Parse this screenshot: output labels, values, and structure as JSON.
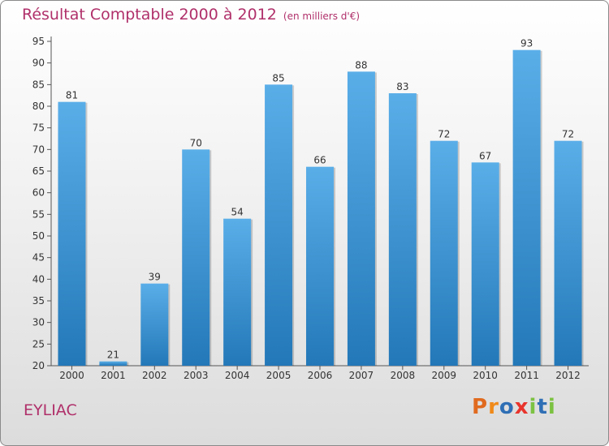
{
  "chart_data": {
    "type": "bar",
    "title": "Résultat Comptable 2000 à 2012",
    "subtitle": "(en milliers d'€)",
    "categories": [
      "2000",
      "2001",
      "2002",
      "2003",
      "2004",
      "2005",
      "2006",
      "2007",
      "2008",
      "2009",
      "2010",
      "2011",
      "2012"
    ],
    "values": [
      81,
      21,
      39,
      70,
      54,
      85,
      66,
      88,
      83,
      72,
      67,
      93,
      72
    ],
    "ylim": [
      20,
      95
    ],
    "yticks": [
      20,
      25,
      30,
      35,
      40,
      45,
      50,
      55,
      60,
      65,
      70,
      75,
      80,
      85,
      90,
      95
    ],
    "grid": false,
    "xlabel": "",
    "ylabel": ""
  },
  "commune": "EYLIAC",
  "logo": {
    "letters": [
      "P",
      "r",
      "o",
      "x",
      "i",
      "t",
      "i"
    ],
    "colors": [
      "#e06a1f",
      "#f08a1a",
      "#2f6fb5",
      "#e8342c",
      "#7cc242",
      "#2f6fb5",
      "#7cc242"
    ]
  },
  "colors": {
    "bar_light": "#5aaee8",
    "bar_dark": "#2378b8",
    "title": "#b0306a"
  }
}
